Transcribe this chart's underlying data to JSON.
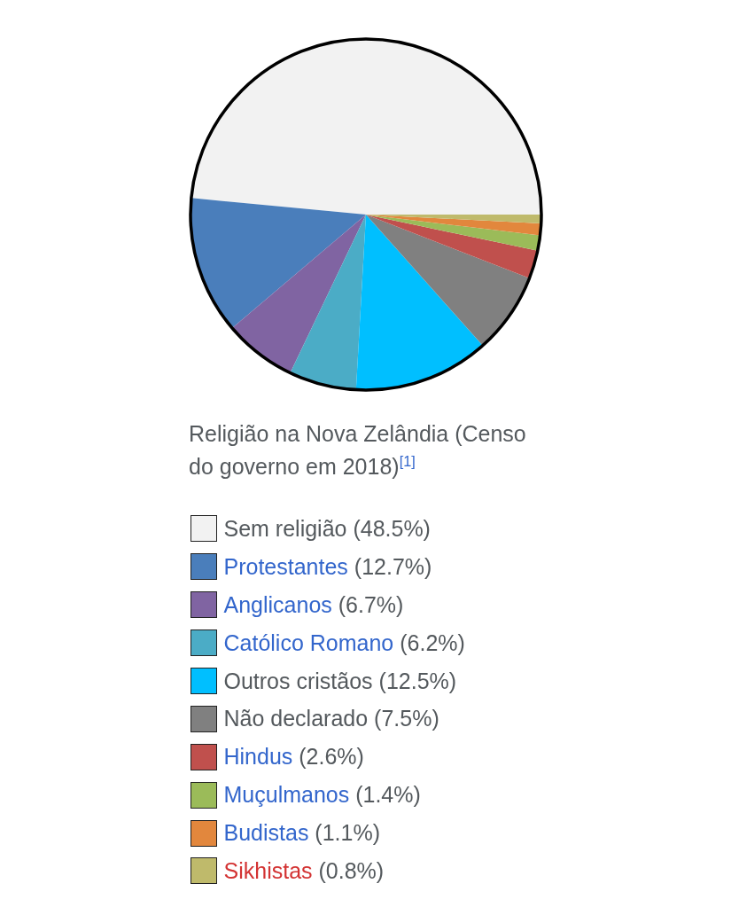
{
  "chart_data": {
    "type": "pie",
    "title": "Religião na Nova Zelândia (Censo do governo em 2018)$^{[1]}$",
    "categories": [
      "Sem religião",
      "Protestantes",
      "Anglicanos",
      "Católico Romano",
      "Outros cristãos",
      "Não declarado",
      "Hindus",
      "Muçulmanos",
      "Budistas",
      "Sikhistas"
    ],
    "values": [
      48.5,
      12.7,
      6.7,
      6.2,
      12.5,
      7.5,
      2.6,
      1.4,
      1.1,
      0.8
    ],
    "value_labels": [
      "(48.5%)",
      "(12.7%)",
      "(6.7%)",
      "(6.2%)",
      "(12.5%)",
      "(7.5%)",
      "(2.6%)",
      "(1.4%)",
      "(1.1%)",
      "(0.8%)"
    ],
    "colors": [
      "#f2f2f2",
      "#4a7ebb",
      "#8064a2",
      "#4bacc6",
      "#00bfff",
      "#808080",
      "#c0504d",
      "#9bbb59",
      "#e2873d",
      "#bfba6b"
    ],
    "legend": "bottom"
  }
}
